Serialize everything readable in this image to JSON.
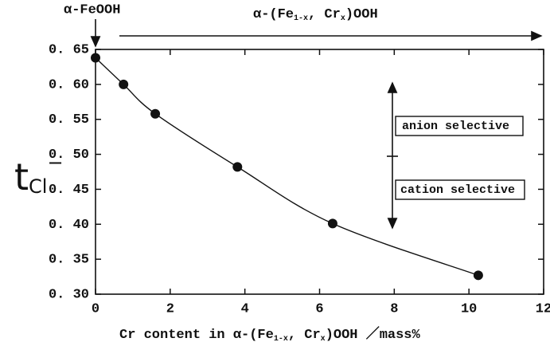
{
  "chart_data": {
    "type": "scatter",
    "x_label": [
      "Cr content in  α-(Fe",
      "1-x",
      ", Cr",
      "x",
      ")OOH ／mass%"
    ],
    "y_label": [
      "t",
      "Cl",
      "−"
    ],
    "annotations": {
      "pure": "α-FeOOH",
      "doped": [
        "α-(Fe",
        "1-x",
        ", Cr",
        "x",
        ")OOH"
      ],
      "anion": "anion selective",
      "cation": "cation selective"
    },
    "series": [
      {
        "color": "#111111",
        "x": [
          0,
          0.75,
          1.6,
          3.8,
          6.35,
          10.25
        ],
        "values": [
          0.638,
          0.6,
          0.558,
          0.482,
          0.401,
          0.327
        ]
      }
    ],
    "xlim": [
      0,
      12
    ],
    "xticks": [
      0,
      2,
      4,
      6,
      8,
      10,
      12
    ],
    "ylim": [
      0.3,
      0.65
    ],
    "yticks": [
      {
        "value": 0.3,
        "label": "0. 30"
      },
      {
        "value": 0.35,
        "label": "0. 35"
      },
      {
        "value": 0.4,
        "label": "0. 40"
      },
      {
        "value": 0.45,
        "label": "0. 45"
      },
      {
        "value": 0.5,
        "label": "0. 50"
      },
      {
        "value": 0.55,
        "label": "0. 55"
      },
      {
        "value": 0.6,
        "label": "0. 60"
      },
      {
        "value": 0.65,
        "label": "0. 65"
      }
    ]
  }
}
